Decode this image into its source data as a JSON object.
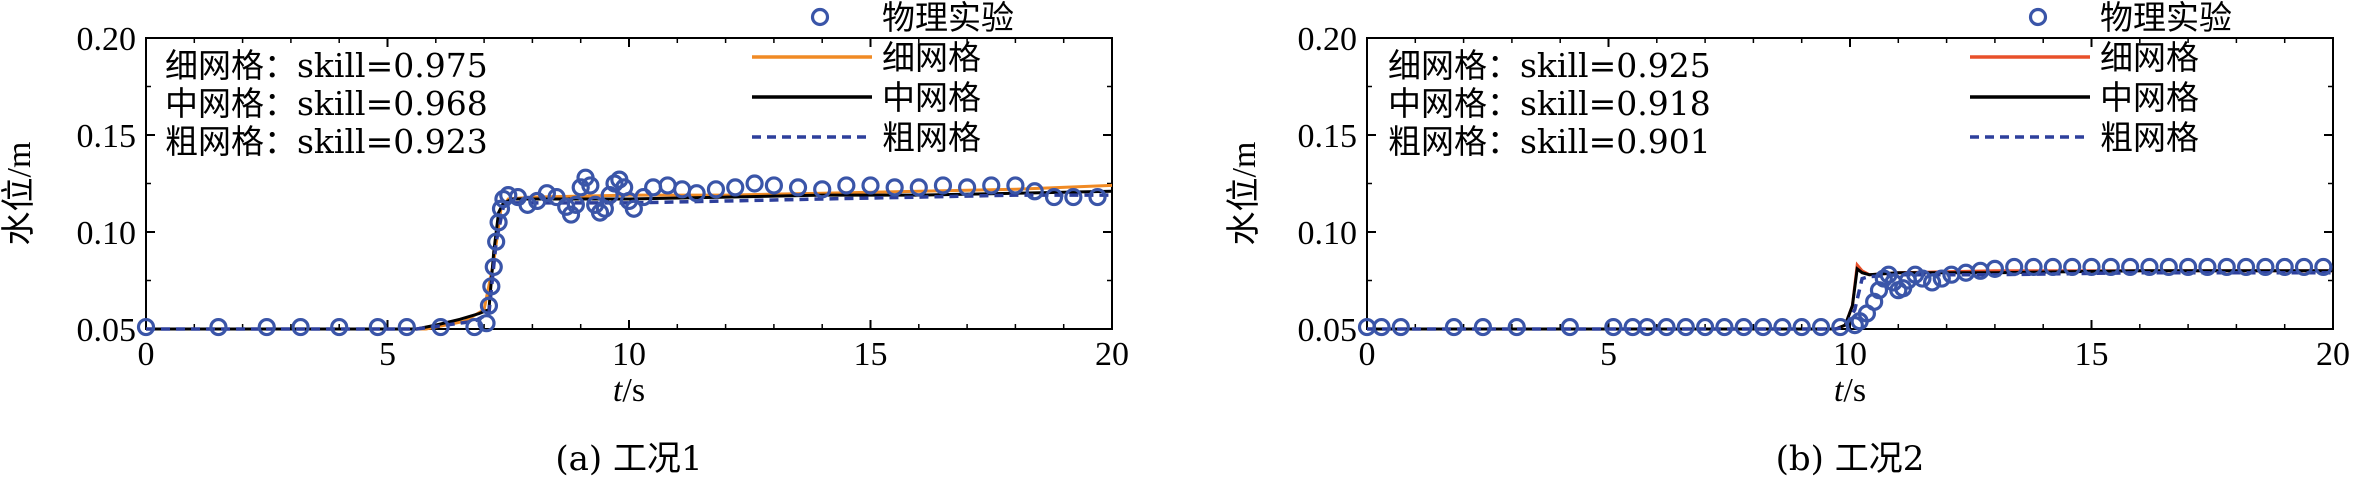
{
  "chart_data": [
    {
      "type": "line",
      "caption": "(a) 工况1",
      "xlabel_italic": "t",
      "xlabel_unit": "/s",
      "ylabel": "水位/m",
      "xlim": [
        0,
        20
      ],
      "ylim": [
        0.05,
        0.2
      ],
      "xticks": [
        0,
        5,
        10,
        15,
        20
      ],
      "yticks": [
        "0.05",
        "0.10",
        "0.15",
        "0.20"
      ],
      "skill_text": [
        "细网格：skill=0.975",
        "中网格：skill=0.968",
        "粗网格：skill=0.923"
      ],
      "legend_placement": "top-right",
      "series": [
        {
          "name": "物理实验",
          "style": "circles",
          "color": "#3a55a8",
          "points": [
            [
              0,
              0.051
            ],
            [
              1.5,
              0.051
            ],
            [
              2.5,
              0.051
            ],
            [
              3.2,
              0.051
            ],
            [
              4,
              0.051
            ],
            [
              4.8,
              0.051
            ],
            [
              5.4,
              0.051
            ],
            [
              6.1,
              0.051
            ],
            [
              6.8,
              0.051
            ],
            [
              7.05,
              0.053
            ],
            [
              7.1,
              0.062
            ],
            [
              7.15,
              0.072
            ],
            [
              7.2,
              0.082
            ],
            [
              7.25,
              0.095
            ],
            [
              7.3,
              0.105
            ],
            [
              7.35,
              0.112
            ],
            [
              7.4,
              0.117
            ],
            [
              7.5,
              0.119
            ],
            [
              7.7,
              0.118
            ],
            [
              7.9,
              0.114
            ],
            [
              8.1,
              0.116
            ],
            [
              8.3,
              0.12
            ],
            [
              8.5,
              0.118
            ],
            [
              8.7,
              0.113
            ],
            [
              8.8,
              0.109
            ],
            [
              8.9,
              0.114
            ],
            [
              9.0,
              0.123
            ],
            [
              9.1,
              0.128
            ],
            [
              9.2,
              0.124
            ],
            [
              9.3,
              0.114
            ],
            [
              9.4,
              0.11
            ],
            [
              9.5,
              0.112
            ],
            [
              9.6,
              0.119
            ],
            [
              9.7,
              0.125
            ],
            [
              9.8,
              0.127
            ],
            [
              9.9,
              0.123
            ],
            [
              10.0,
              0.116
            ],
            [
              10.1,
              0.112
            ],
            [
              10.3,
              0.118
            ],
            [
              10.5,
              0.123
            ],
            [
              10.8,
              0.124
            ],
            [
              11.1,
              0.122
            ],
            [
              11.4,
              0.12
            ],
            [
              11.8,
              0.122
            ],
            [
              12.2,
              0.123
            ],
            [
              12.6,
              0.125
            ],
            [
              13.0,
              0.124
            ],
            [
              13.5,
              0.123
            ],
            [
              14.0,
              0.122
            ],
            [
              14.5,
              0.124
            ],
            [
              15.0,
              0.124
            ],
            [
              15.5,
              0.123
            ],
            [
              16.0,
              0.123
            ],
            [
              16.5,
              0.124
            ],
            [
              17.0,
              0.123
            ],
            [
              17.5,
              0.124
            ],
            [
              18.0,
              0.124
            ],
            [
              18.4,
              0.121
            ],
            [
              18.8,
              0.118
            ],
            [
              19.2,
              0.118
            ],
            [
              19.7,
              0.118
            ]
          ]
        },
        {
          "name": "细网格",
          "style": "line",
          "color": "#f08a24",
          "points": [
            [
              0,
              0.05
            ],
            [
              5.8,
              0.05
            ],
            [
              6.6,
              0.054
            ],
            [
              7.0,
              0.06
            ],
            [
              7.2,
              0.085
            ],
            [
              7.35,
              0.112
            ],
            [
              7.5,
              0.117
            ],
            [
              8,
              0.118
            ],
            [
              10,
              0.119
            ],
            [
              12,
              0.119
            ],
            [
              14,
              0.12
            ],
            [
              16,
              0.121
            ],
            [
              18,
              0.122
            ],
            [
              20,
              0.124
            ]
          ]
        },
        {
          "name": "中网格",
          "style": "line",
          "color": "#000000",
          "points": [
            [
              0,
              0.05
            ],
            [
              5.6,
              0.05
            ],
            [
              6.0,
              0.052
            ],
            [
              6.5,
              0.055
            ],
            [
              6.9,
              0.058
            ],
            [
              7.1,
              0.06
            ],
            [
              7.2,
              0.09
            ],
            [
              7.3,
              0.11
            ],
            [
              7.4,
              0.115
            ],
            [
              7.6,
              0.117
            ],
            [
              8,
              0.117
            ],
            [
              10,
              0.117
            ],
            [
              12,
              0.118
            ],
            [
              14,
              0.119
            ],
            [
              16,
              0.119
            ],
            [
              18,
              0.12
            ],
            [
              20,
              0.121
            ]
          ]
        },
        {
          "name": "粗网格",
          "style": "dashed",
          "color": "#2d3f9c",
          "points": [
            [
              0,
              0.05
            ],
            [
              5.6,
              0.05
            ],
            [
              6.2,
              0.052
            ],
            [
              6.8,
              0.054
            ],
            [
              7.1,
              0.058
            ],
            [
              7.25,
              0.095
            ],
            [
              7.4,
              0.113
            ],
            [
              7.6,
              0.115
            ],
            [
              8,
              0.115
            ],
            [
              10,
              0.115
            ],
            [
              12,
              0.116
            ],
            [
              14,
              0.117
            ],
            [
              16,
              0.118
            ],
            [
              18,
              0.119
            ],
            [
              20,
              0.119
            ]
          ]
        }
      ]
    },
    {
      "type": "line",
      "caption": "(b) 工况2",
      "xlabel_italic": "t",
      "xlabel_unit": "/s",
      "ylabel": "水位/m",
      "xlim": [
        0,
        20
      ],
      "ylim": [
        0.05,
        0.2
      ],
      "xticks": [
        0,
        5,
        10,
        15,
        20
      ],
      "yticks": [
        "0.05",
        "0.10",
        "0.15",
        "0.20"
      ],
      "skill_text": [
        "细网格：skill=0.925",
        "中网格：skill=0.918",
        "粗网格：skill=0.901"
      ],
      "legend_placement": "top-right",
      "series": [
        {
          "name": "物理实验",
          "style": "circles",
          "color": "#3a55a8",
          "points": [
            [
              0,
              0.051
            ],
            [
              0.3,
              0.051
            ],
            [
              0.7,
              0.051
            ],
            [
              1.8,
              0.051
            ],
            [
              2.4,
              0.051
            ],
            [
              3.1,
              0.051
            ],
            [
              4.2,
              0.051
            ],
            [
              5.1,
              0.051
            ],
            [
              5.5,
              0.051
            ],
            [
              5.8,
              0.051
            ],
            [
              6.2,
              0.051
            ],
            [
              6.6,
              0.051
            ],
            [
              7.0,
              0.051
            ],
            [
              7.4,
              0.051
            ],
            [
              7.8,
              0.051
            ],
            [
              8.2,
              0.051
            ],
            [
              8.6,
              0.051
            ],
            [
              9.0,
              0.051
            ],
            [
              9.4,
              0.051
            ],
            [
              9.8,
              0.051
            ],
            [
              10.1,
              0.052
            ],
            [
              10.2,
              0.054
            ],
            [
              10.35,
              0.058
            ],
            [
              10.5,
              0.064
            ],
            [
              10.6,
              0.07
            ],
            [
              10.7,
              0.076
            ],
            [
              10.8,
              0.078
            ],
            [
              10.9,
              0.074
            ],
            [
              11.0,
              0.07
            ],
            [
              11.1,
              0.071
            ],
            [
              11.2,
              0.075
            ],
            [
              11.35,
              0.078
            ],
            [
              11.5,
              0.076
            ],
            [
              11.7,
              0.074
            ],
            [
              11.9,
              0.076
            ],
            [
              12.1,
              0.078
            ],
            [
              12.4,
              0.079
            ],
            [
              12.7,
              0.08
            ],
            [
              13.0,
              0.081
            ],
            [
              13.4,
              0.082
            ],
            [
              13.8,
              0.082
            ],
            [
              14.2,
              0.082
            ],
            [
              14.6,
              0.082
            ],
            [
              15.0,
              0.082
            ],
            [
              15.4,
              0.082
            ],
            [
              15.8,
              0.082
            ],
            [
              16.2,
              0.082
            ],
            [
              16.6,
              0.082
            ],
            [
              17.0,
              0.082
            ],
            [
              17.4,
              0.082
            ],
            [
              17.8,
              0.082
            ],
            [
              18.2,
              0.082
            ],
            [
              18.6,
              0.082
            ],
            [
              19.0,
              0.082
            ],
            [
              19.4,
              0.082
            ],
            [
              19.8,
              0.082
            ]
          ]
        },
        {
          "name": "细网格",
          "style": "line",
          "color": "#e8502a",
          "points": [
            [
              0,
              0.05
            ],
            [
              9.7,
              0.05
            ],
            [
              9.9,
              0.052
            ],
            [
              10.05,
              0.062
            ],
            [
              10.15,
              0.083
            ],
            [
              10.25,
              0.08
            ],
            [
              10.4,
              0.078
            ],
            [
              11,
              0.079
            ],
            [
              13,
              0.08
            ],
            [
              16,
              0.08
            ],
            [
              20,
              0.08
            ]
          ]
        },
        {
          "name": "中网格",
          "style": "line",
          "color": "#000000",
          "points": [
            [
              0,
              0.05
            ],
            [
              9.7,
              0.05
            ],
            [
              9.9,
              0.052
            ],
            [
              10.05,
              0.062
            ],
            [
              10.15,
              0.081
            ],
            [
              10.25,
              0.079
            ],
            [
              10.4,
              0.078
            ],
            [
              11,
              0.079
            ],
            [
              13,
              0.079
            ],
            [
              16,
              0.08
            ],
            [
              20,
              0.08
            ]
          ]
        },
        {
          "name": "粗网格",
          "style": "dashed",
          "color": "#2d3f9c",
          "points": [
            [
              0,
              0.05
            ],
            [
              9.7,
              0.05
            ],
            [
              9.9,
              0.051
            ],
            [
              10.1,
              0.06
            ],
            [
              10.25,
              0.076
            ],
            [
              10.4,
              0.077
            ],
            [
              11,
              0.078
            ],
            [
              13,
              0.078
            ],
            [
              16,
              0.079
            ],
            [
              20,
              0.079
            ]
          ]
        }
      ]
    }
  ]
}
